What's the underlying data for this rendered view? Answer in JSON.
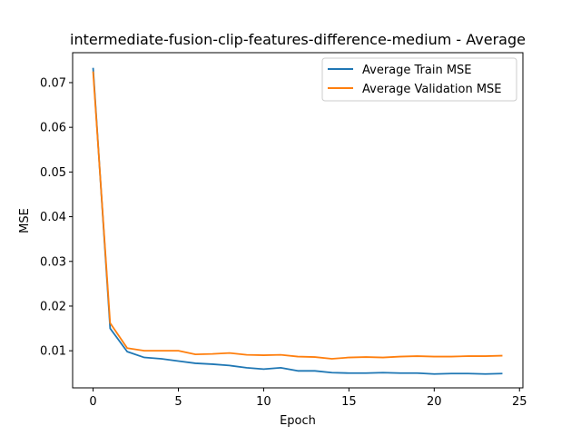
{
  "chart_data": {
    "type": "line",
    "title": "intermediate-fusion-clip-features-difference-medium - Average",
    "xlabel": "Epoch",
    "ylabel": "MSE",
    "xlim": [
      -1.2,
      25.2
    ],
    "ylim": [
      0.0017,
      0.0767
    ],
    "xticks": [
      0,
      5,
      10,
      15,
      20,
      25
    ],
    "xtick_labels": [
      "0",
      "5",
      "10",
      "15",
      "20",
      "25"
    ],
    "yticks": [
      0.01,
      0.02,
      0.03,
      0.04,
      0.05,
      0.06,
      0.07
    ],
    "ytick_labels": [
      "0.01",
      "0.02",
      "0.03",
      "0.04",
      "0.05",
      "0.06",
      "0.07"
    ],
    "grid": false,
    "legend_position": "top-right",
    "x": [
      0,
      1,
      2,
      3,
      4,
      5,
      6,
      7,
      8,
      9,
      10,
      11,
      12,
      13,
      14,
      15,
      16,
      17,
      18,
      19,
      20,
      21,
      22,
      23,
      24
    ],
    "series": [
      {
        "name": "Average Train MSE",
        "color": "#1f77b4",
        "values": [
          0.0733,
          0.015,
          0.0098,
          0.0085,
          0.0082,
          0.0077,
          0.0072,
          0.007,
          0.0067,
          0.0062,
          0.0059,
          0.0062,
          0.0055,
          0.0055,
          0.0051,
          0.005,
          0.005,
          0.0051,
          0.005,
          0.005,
          0.0048,
          0.0049,
          0.0049,
          0.0048,
          0.0049
        ]
      },
      {
        "name": "Average Validation MSE",
        "color": "#ff7f0e",
        "values": [
          0.0725,
          0.0162,
          0.0106,
          0.01,
          0.01,
          0.01,
          0.0092,
          0.0093,
          0.0095,
          0.0091,
          0.009,
          0.0091,
          0.0087,
          0.0086,
          0.0082,
          0.0085,
          0.0086,
          0.0085,
          0.0087,
          0.0088,
          0.0087,
          0.0087,
          0.0088,
          0.0088,
          0.0089
        ]
      }
    ]
  }
}
